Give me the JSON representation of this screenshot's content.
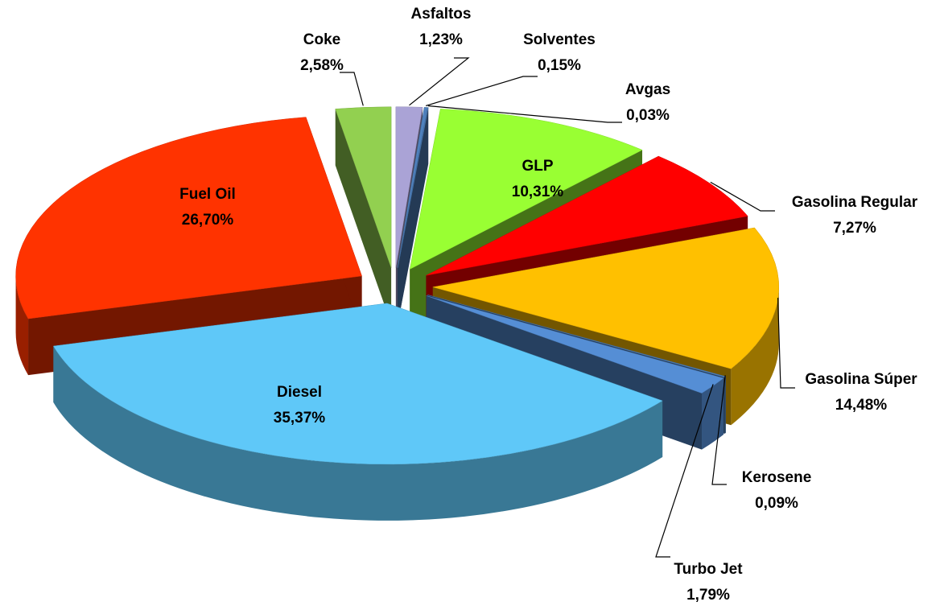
{
  "chart_data": {
    "type": "pie",
    "categories": [
      "Asfaltos",
      "Solventes",
      "Avgas",
      "GLP",
      "Gasolina Regular",
      "Gasolina Súper",
      "Kerosene",
      "Turbo Jet",
      "Diesel",
      "Fuel Oil",
      "Coke"
    ],
    "values": [
      1.23,
      0.15,
      0.03,
      10.31,
      7.27,
      14.48,
      0.09,
      1.79,
      35.37,
      26.7,
      2.58
    ],
    "value_labels": [
      "1,23%",
      "0,15%",
      "0,03%",
      "10,31%",
      "7,27%",
      "14,48%",
      "0,09%",
      "1,79%",
      "35,37%",
      "26,70%",
      "2,58%"
    ],
    "colors": [
      "#aaa3d6",
      "#4f81bd",
      "#4f81bd",
      "#99ff33",
      "#ff0000",
      "#ffc000",
      "#4f81bd",
      "#558ed5",
      "#5fc8f8",
      "#ff3300",
      "#92d050"
    ]
  }
}
